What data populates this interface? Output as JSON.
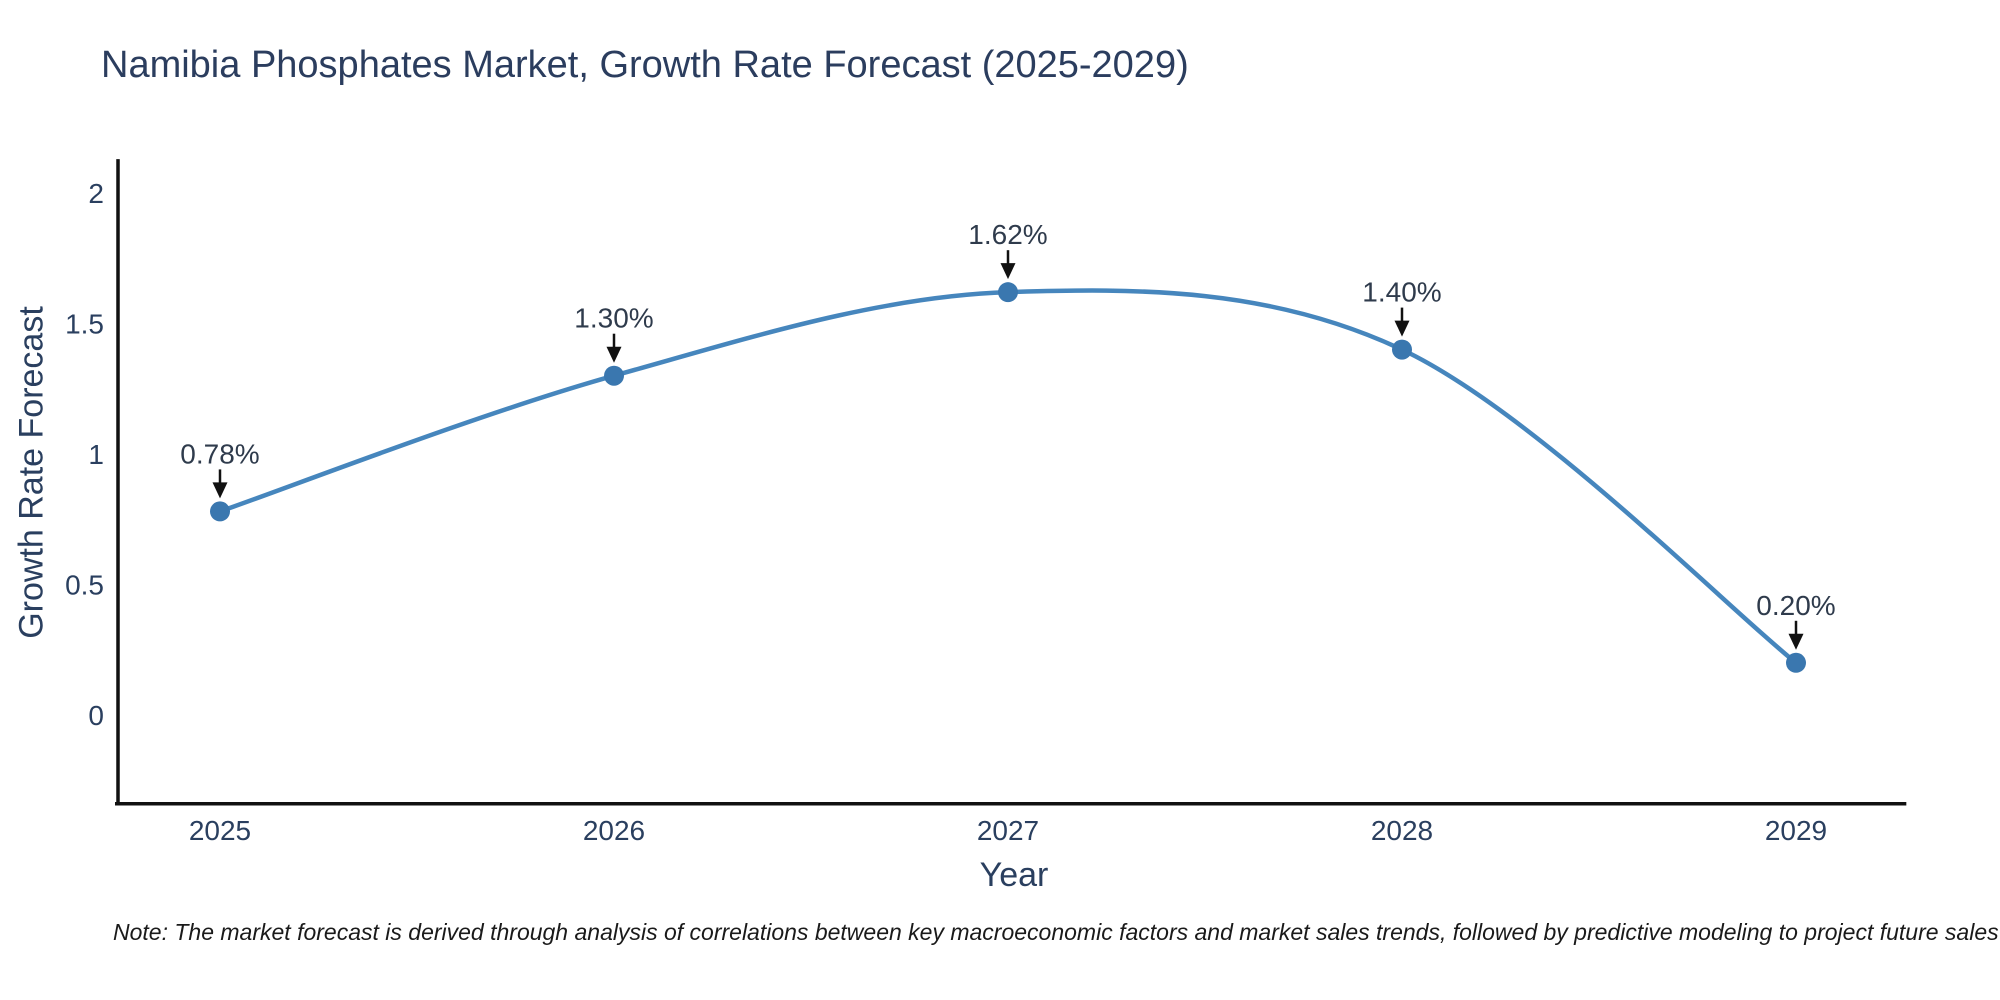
{
  "title": {
    "text": "Namibia Phosphates Market, Growth Rate Forecast (2025-2029)"
  },
  "note": {
    "text": "Note: The market forecast is derived through analysis of correlations between key macroeconomic factors and market sales trends, followed by predictive modeling to project future sales"
  },
  "chart_data": {
    "type": "line",
    "title": "Namibia Phosphates Market, Growth Rate Forecast (2025-2029)",
    "xlabel": "Year",
    "ylabel": "Growth Rate Forecast",
    "x": [
      2025,
      2026,
      2027,
      2028,
      2029
    ],
    "values": [
      0.78,
      1.3,
      1.62,
      1.4,
      0.2
    ],
    "point_labels": [
      "0.78%",
      "1.30%",
      "1.62%",
      "1.40%",
      "0.20%"
    ],
    "x_tick_labels": [
      "2025",
      "2026",
      "2027",
      "2028",
      "2029"
    ],
    "y_ticks": [
      0,
      0.5,
      1,
      1.5,
      2
    ],
    "y_tick_labels": [
      "0",
      "0.5",
      "1",
      "1.5",
      "2"
    ],
    "xlim": [
      2024.74,
      2029.28
    ],
    "ylim": [
      -0.34,
      2.13
    ],
    "line_shape": "spline",
    "grid": false,
    "legend": "none",
    "colors": {
      "line": "#4686bd",
      "marker": "#3a77af",
      "axis": "#111111",
      "tick_label": "#2a3f5f",
      "annotation_text": "#2f3b4c",
      "arrow": "#111111",
      "title": "#2b3d5e",
      "background": "#ffffff"
    }
  }
}
